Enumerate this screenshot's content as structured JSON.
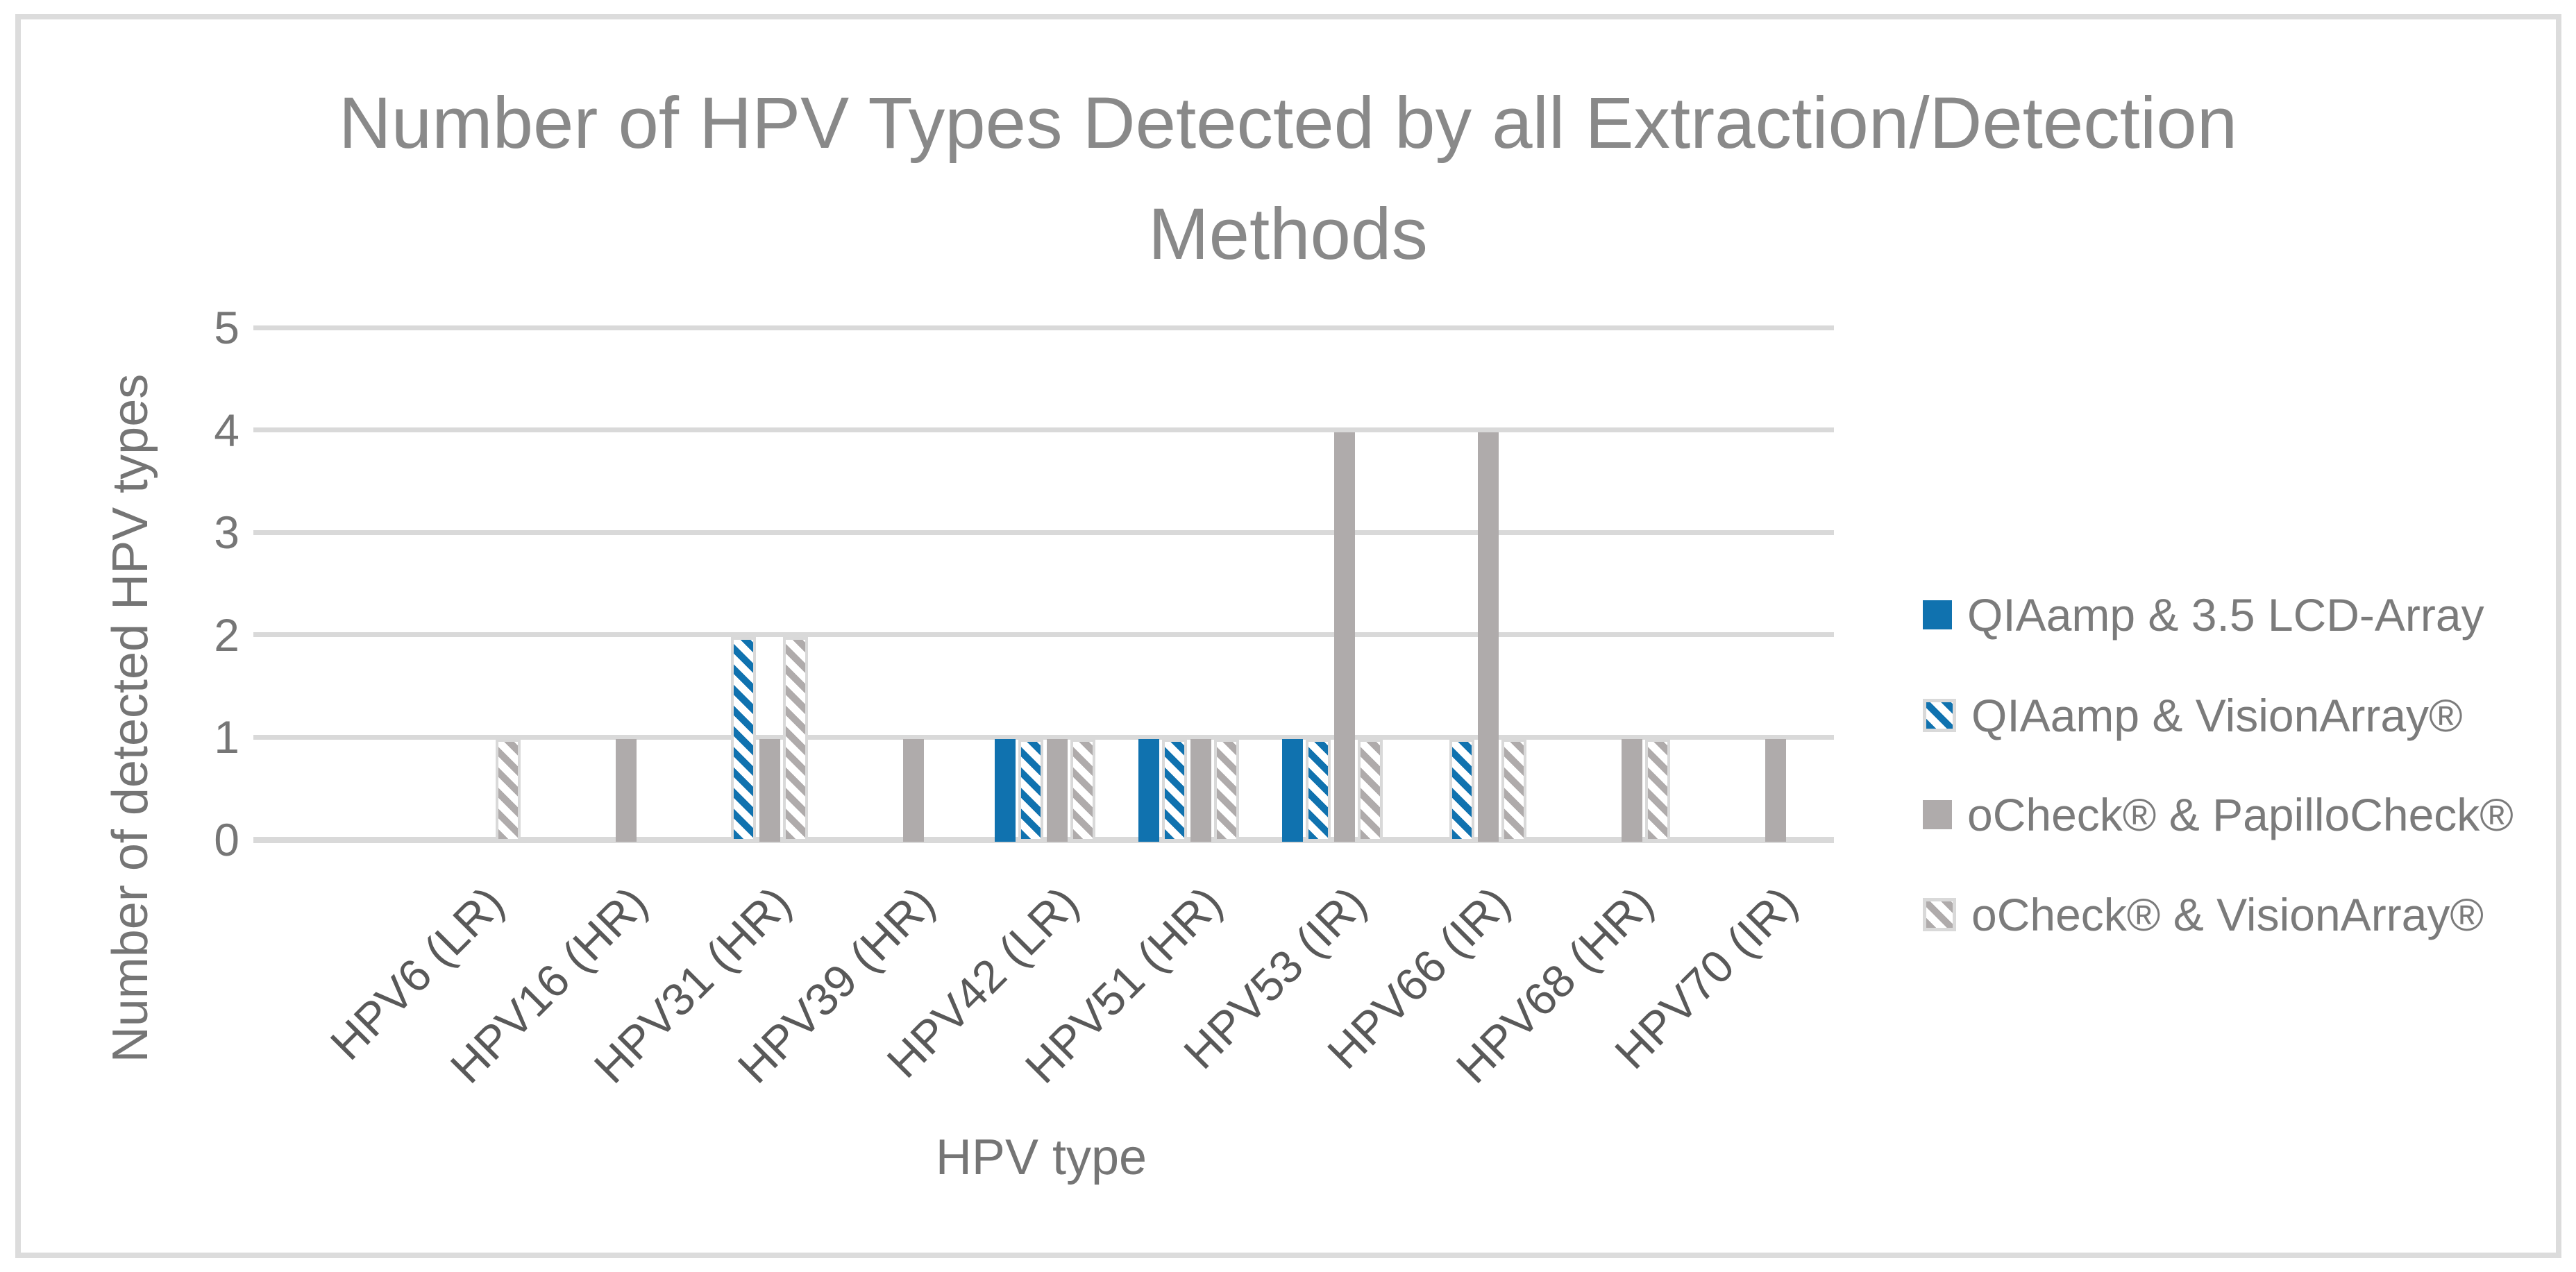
{
  "figure": {
    "background": "#FFFFFF",
    "border_color": "#DCDCDC"
  },
  "colors": {
    "blue": "#1072AF",
    "gray": "#AFABAB",
    "gridline": "#D9D9D9",
    "title_text": "#898989",
    "axis_text": "#767676",
    "category_text": "#595959",
    "legend_text": "#7B7B7B"
  },
  "chart_data": {
    "type": "bar",
    "title": "Number of HPV Types Detected by all Extraction/Detection Methods",
    "title_lines": [
      "Number of HPV Types Detected by all Extraction/Detection",
      "Methods"
    ],
    "xlabel": "HPV type",
    "ylabel": "Number of detected HPV types",
    "ylim": [
      0,
      5
    ],
    "yticks": [
      0,
      1,
      2,
      3,
      4,
      5
    ],
    "grid": "horizontal",
    "legend_position": "right",
    "x_label_rotation_deg": 45,
    "categories": [
      "HPV6 (LR)",
      "HPV16 (HR)",
      "HPV31 (HR)",
      "HPV39 (HR)",
      "HPV42 (LR)",
      "HPV51 (HR)",
      "HPV53 (IR)",
      "HPV66 (IR)",
      "HPV68 (HR)",
      "HPV70 (IR)"
    ],
    "series": [
      {
        "name": "QIAamp & 3.5 LCD-Array",
        "fill": "solid",
        "color": "#1072AF",
        "values": [
          0,
          0,
          0,
          0,
          1,
          1,
          1,
          0,
          0,
          0
        ]
      },
      {
        "name": "QIAamp & VisionArray®",
        "fill": "hatch",
        "color": "#1072AF",
        "values": [
          0,
          0,
          2,
          0,
          1,
          1,
          1,
          1,
          0,
          0
        ]
      },
      {
        "name": "oCheck® & PapilloCheck®",
        "fill": "solid",
        "color": "#AFABAB",
        "values": [
          0,
          1,
          1,
          1,
          1,
          1,
          4,
          4,
          1,
          1
        ]
      },
      {
        "name": "oCheck® & VisionArray®",
        "fill": "hatch",
        "color": "#AFABAB",
        "values": [
          1,
          0,
          2,
          0,
          1,
          1,
          1,
          1,
          1,
          0
        ]
      }
    ]
  }
}
